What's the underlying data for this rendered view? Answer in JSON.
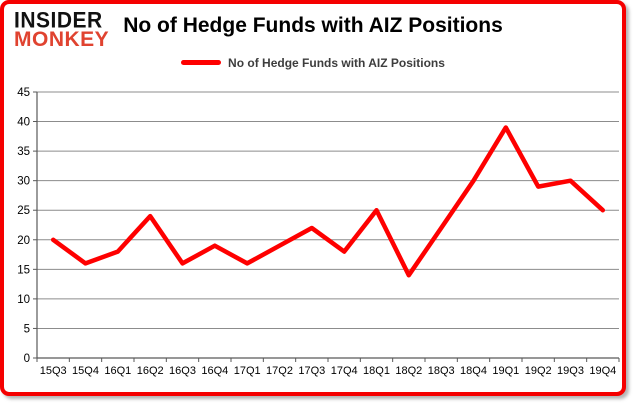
{
  "logo": {
    "line1": "INSIDER",
    "line2": "MONKEY"
  },
  "header": {
    "title": "No of Hedge Funds with AIZ Positions"
  },
  "legend": {
    "label": "No of Hedge Funds with AIZ Positions"
  },
  "colors": {
    "line": "#fe0000",
    "frame": "#f50000",
    "logo_black": "#111111",
    "logo_red": "#e04330",
    "grid": "#8c8c8c",
    "axis": "#595959",
    "tick_text": "#000000",
    "legend_text": "#3d3d3d"
  },
  "chart_data": {
    "type": "line",
    "title": "No of Hedge Funds with AIZ Positions",
    "categories": [
      "15Q3",
      "15Q4",
      "16Q1",
      "16Q2",
      "16Q3",
      "16Q4",
      "17Q1",
      "17Q2",
      "17Q3",
      "17Q4",
      "18Q1",
      "18Q2",
      "18Q3",
      "18Q4",
      "19Q1",
      "19Q2",
      "19Q3",
      "19Q4"
    ],
    "series": [
      {
        "name": "No of Hedge Funds with AIZ Positions",
        "values": [
          20,
          16,
          18,
          24,
          16,
          19,
          16,
          19,
          22,
          18,
          25,
          14,
          22,
          30,
          39,
          29,
          30,
          25
        ]
      }
    ],
    "xlabel": "",
    "ylabel": "",
    "ylim": [
      0,
      45
    ],
    "ytick_step": 5,
    "grid": true,
    "legend_position": "top"
  }
}
